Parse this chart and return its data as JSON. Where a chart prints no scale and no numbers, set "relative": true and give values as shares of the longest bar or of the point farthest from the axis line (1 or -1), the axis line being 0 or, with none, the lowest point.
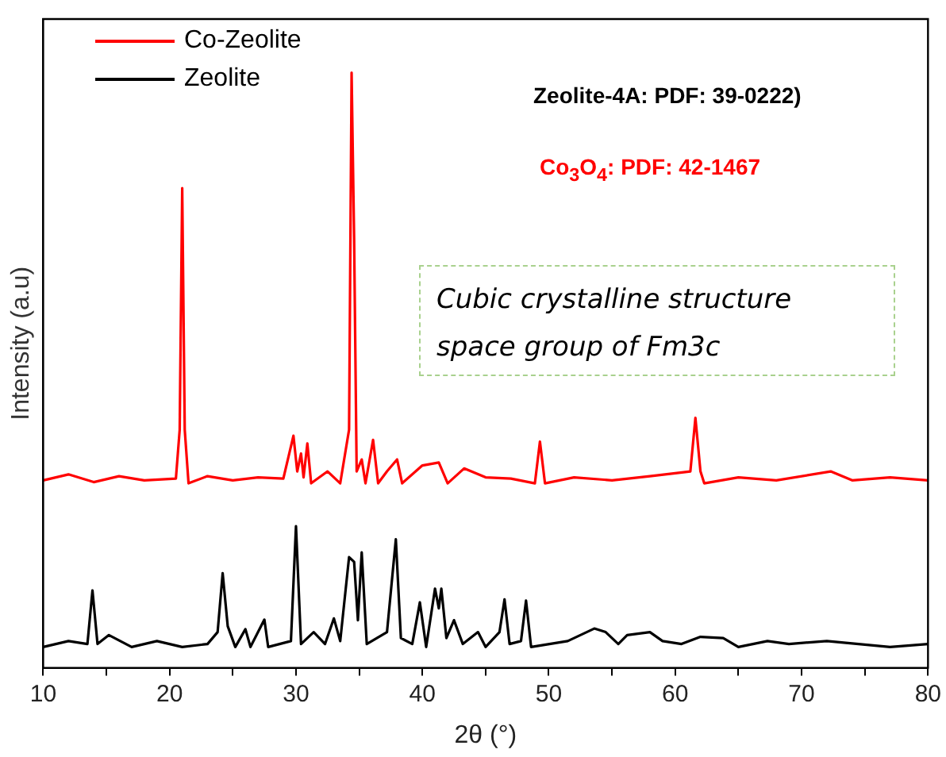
{
  "chart_data": {
    "type": "line",
    "relative": true,
    "xlabel": "2θ (°)",
    "ylabel": "Intensity (a.u)",
    "xlim": [
      10,
      80
    ],
    "xticks": [
      10,
      {
        "value": 15,
        "label": null
      },
      20,
      {
        "value": 25,
        "label": null
      },
      30,
      {
        "value": 35,
        "label": null
      },
      40,
      {
        "value": 45,
        "label": null
      },
      50,
      {
        "value": 55,
        "label": null
      },
      60,
      {
        "value": 65,
        "label": null
      },
      70,
      {
        "value": 75,
        "label": null
      },
      80
    ],
    "grid": false,
    "legend": "top left",
    "tick_labels": "x",
    "marker": "none",
    "line_style": "solid",
    "annotations": [
      "Zeolite-4A: PDF: 39-0222)",
      "Co$_{3}$O$_{4}$: PDF: 42-1467",
      "Cubic crystalline structure space group of Fm3c"
    ],
    "series": [
      {
        "name": "Co-Zeolite",
        "color": "#ff0000",
        "x": [
          10,
          12,
          14,
          16,
          18,
          20.5,
          20.8,
          21.0,
          21.2,
          21.5,
          23,
          25,
          27,
          29,
          29.8,
          30.1,
          30.4,
          30.6,
          30.9,
          31.2,
          32.5,
          33.5,
          34.2,
          34.4,
          34.6,
          34.8,
          35.2,
          35.5,
          36.1,
          36.5,
          37.2,
          38.0,
          38.4,
          40,
          41.3,
          42,
          43.3,
          45,
          47,
          48.9,
          49.3,
          49.7,
          52,
          55,
          58,
          61.2,
          61.6,
          62,
          62.3,
          65,
          68,
          72.3,
          74,
          77,
          80
        ],
        "values": [
          0.315,
          0.325,
          0.312,
          0.322,
          0.315,
          0.318,
          0.4,
          0.806,
          0.4,
          0.31,
          0.322,
          0.315,
          0.32,
          0.318,
          0.39,
          0.33,
          0.36,
          0.32,
          0.377,
          0.31,
          0.33,
          0.31,
          0.4,
          1.0,
          0.72,
          0.33,
          0.35,
          0.31,
          0.383,
          0.31,
          0.33,
          0.35,
          0.31,
          0.34,
          0.345,
          0.31,
          0.335,
          0.32,
          0.318,
          0.31,
          0.38,
          0.31,
          0.32,
          0.315,
          0.322,
          0.33,
          0.42,
          0.33,
          0.31,
          0.32,
          0.315,
          0.33,
          0.315,
          0.32,
          0.315
        ]
      },
      {
        "name": "Zeolite",
        "color": "#000000",
        "x": [
          10,
          12,
          13.5,
          13.9,
          14.3,
          15.2,
          17,
          19,
          21,
          23,
          23.8,
          24.2,
          24.6,
          25.2,
          26,
          26.4,
          27.5,
          27.8,
          29.6,
          30.0,
          30.4,
          31.4,
          32.3,
          33.0,
          33.5,
          34.2,
          34.6,
          34.9,
          35.2,
          35.6,
          37.2,
          37.9,
          38.3,
          39.2,
          39.8,
          40.3,
          41.0,
          41.3,
          41.5,
          41.9,
          42.5,
          43.2,
          44.4,
          45,
          46.1,
          46.5,
          46.9,
          47.8,
          48.2,
          48.6,
          51.5,
          53.6,
          54.5,
          55.5,
          56.2,
          58,
          59,
          60.5,
          62,
          63.8,
          65,
          67.3,
          69,
          72,
          74.5,
          77,
          80
        ],
        "values": [
          0.035,
          0.045,
          0.04,
          0.13,
          0.04,
          0.055,
          0.035,
          0.045,
          0.035,
          0.04,
          0.06,
          0.159,
          0.07,
          0.035,
          0.065,
          0.035,
          0.081,
          0.035,
          0.045,
          0.238,
          0.04,
          0.06,
          0.04,
          0.083,
          0.045,
          0.186,
          0.178,
          0.08,
          0.194,
          0.04,
          0.06,
          0.216,
          0.05,
          0.04,
          0.11,
          0.035,
          0.133,
          0.1,
          0.133,
          0.05,
          0.08,
          0.04,
          0.06,
          0.035,
          0.06,
          0.115,
          0.04,
          0.045,
          0.113,
          0.035,
          0.045,
          0.066,
          0.06,
          0.04,
          0.055,
          0.06,
          0.045,
          0.04,
          0.052,
          0.05,
          0.035,
          0.045,
          0.04,
          0.045,
          0.04,
          0.035,
          0.04
        ]
      }
    ]
  }
}
